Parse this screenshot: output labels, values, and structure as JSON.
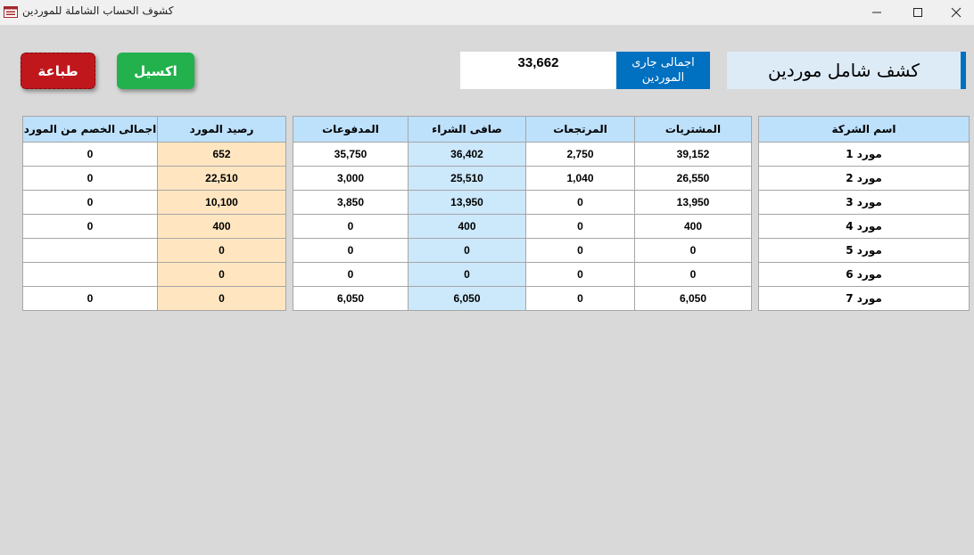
{
  "window": {
    "title": "كشوف الحساب الشاملة للموردين"
  },
  "buttons": {
    "print_label": "طباعة",
    "excel_label": "اكسيل"
  },
  "summary": {
    "total_value": "33,662",
    "total_label": "اجمالى جارى الموردين",
    "report_title": "كشف شامل موردين"
  },
  "colors": {
    "print_button": "#c0171c",
    "excel_button": "#22b14c",
    "label_blue": "#0070c0",
    "header_bg": "#bde0fb",
    "net_purchase_bg": "#cce8fb",
    "balance_bg": "#ffe6c0"
  },
  "table_right": {
    "headers": [
      "اسم الشركة",
      "المشتريات",
      "المرتجعات",
      "صافى الشراء",
      "المدفوعات"
    ],
    "rows": [
      [
        "مورد 1",
        "39,152",
        "2,750",
        "36,402",
        "35,750"
      ],
      [
        "مورد 2",
        "26,550",
        "1,040",
        "25,510",
        "3,000"
      ],
      [
        "مورد 3",
        "13,950",
        "0",
        "13,950",
        "3,850"
      ],
      [
        "مورد 4",
        "400",
        "0",
        "400",
        "0"
      ],
      [
        "مورد 5",
        "0",
        "0",
        "0",
        "0"
      ],
      [
        "مورد 6",
        "0",
        "0",
        "0",
        "0"
      ],
      [
        "مورد 7",
        "6,050",
        "0",
        "6,050",
        "6,050"
      ]
    ]
  },
  "table_left": {
    "headers": [
      "رصيد المورد",
      "اجمالى الخصم من المورد"
    ],
    "rows": [
      [
        "652",
        "0"
      ],
      [
        "22,510",
        "0"
      ],
      [
        "10,100",
        "0"
      ],
      [
        "400",
        "0"
      ],
      [
        "0",
        ""
      ],
      [
        "0",
        ""
      ],
      [
        "0",
        "0"
      ]
    ]
  }
}
